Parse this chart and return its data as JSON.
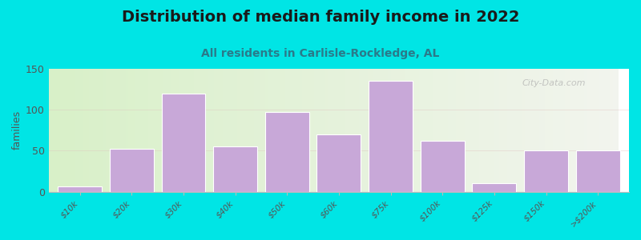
{
  "title": "Distribution of median family income in 2022",
  "subtitle": "All residents in Carlisle-Rockledge, AL",
  "categories": [
    "$10k",
    "$20k",
    "$30k",
    "$40k",
    "$50k",
    "$60k",
    "$75k",
    "$100k",
    "$125k",
    "$150k",
    ">$200k"
  ],
  "values": [
    7,
    52,
    120,
    55,
    97,
    70,
    135,
    62,
    10,
    50,
    50
  ],
  "bar_color": "#c8a8d8",
  "bar_edge_color": "#ffffff",
  "background_outer": "#00e5e5",
  "background_plot_left": "#d8f0c8",
  "background_plot_right": "#f2f4ee",
  "ylabel": "families",
  "ylim": [
    0,
    150
  ],
  "yticks": [
    0,
    50,
    100,
    150
  ],
  "title_fontsize": 14,
  "subtitle_fontsize": 10,
  "title_color": "#1a1a1a",
  "subtitle_color": "#2a7a8a",
  "ylabel_color": "#555555",
  "tick_color": "#555555",
  "watermark": "City-Data.com"
}
